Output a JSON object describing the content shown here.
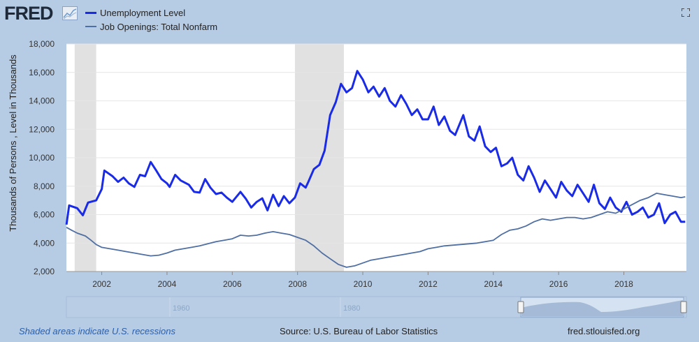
{
  "header": {
    "logo_text": "FRED",
    "legend": [
      {
        "label": "Unemployment Level",
        "color": "#1a2be8"
      },
      {
        "label": "Job Openings: Total Nonfarm",
        "color": "#4f6fa3"
      }
    ]
  },
  "chart_data": {
    "type": "line",
    "ylabel": "Thousands of Persons , Level in Thousands",
    "ylim": [
      2000,
      18000
    ],
    "xlim": [
      2000.917,
      2019.917
    ],
    "ytick_values": [
      2000,
      4000,
      6000,
      8000,
      10000,
      12000,
      14000,
      16000,
      18000
    ],
    "ytick_labels": [
      "2,000",
      "4,000",
      "6,000",
      "8,000",
      "10,000",
      "12,000",
      "14,000",
      "16,000",
      "18,000"
    ],
    "xtick_values": [
      2002,
      2004,
      2006,
      2008,
      2010,
      2012,
      2014,
      2016,
      2018
    ],
    "xtick_labels": [
      "2002",
      "2004",
      "2006",
      "2008",
      "2010",
      "2012",
      "2014",
      "2016",
      "2018"
    ],
    "grid": true,
    "legend_position": "top-left",
    "recessions": [
      [
        2001.17,
        2001.83
      ],
      [
        2007.92,
        2009.42
      ]
    ],
    "series": [
      {
        "name": "Unemployment Level",
        "color": "#1a2be8",
        "points": [
          [
            2000.92,
            5300
          ],
          [
            2001.0,
            6650
          ],
          [
            2001.25,
            6450
          ],
          [
            2001.42,
            5950
          ],
          [
            2001.58,
            6850
          ],
          [
            2001.83,
            7000
          ],
          [
            2002.0,
            7800
          ],
          [
            2002.08,
            9100
          ],
          [
            2002.33,
            8700
          ],
          [
            2002.5,
            8300
          ],
          [
            2002.67,
            8600
          ],
          [
            2002.83,
            8200
          ],
          [
            2003.0,
            7950
          ],
          [
            2003.17,
            8800
          ],
          [
            2003.33,
            8700
          ],
          [
            2003.5,
            9700
          ],
          [
            2003.67,
            9100
          ],
          [
            2003.83,
            8500
          ],
          [
            2004.0,
            8200
          ],
          [
            2004.08,
            7950
          ],
          [
            2004.25,
            8800
          ],
          [
            2004.42,
            8400
          ],
          [
            2004.67,
            8100
          ],
          [
            2004.83,
            7600
          ],
          [
            2005.0,
            7550
          ],
          [
            2005.17,
            8500
          ],
          [
            2005.33,
            7900
          ],
          [
            2005.5,
            7450
          ],
          [
            2005.67,
            7550
          ],
          [
            2005.83,
            7200
          ],
          [
            2006.0,
            6900
          ],
          [
            2006.25,
            7600
          ],
          [
            2006.42,
            7100
          ],
          [
            2006.58,
            6500
          ],
          [
            2006.75,
            6900
          ],
          [
            2006.92,
            7150
          ],
          [
            2007.08,
            6300
          ],
          [
            2007.25,
            7400
          ],
          [
            2007.42,
            6600
          ],
          [
            2007.58,
            7300
          ],
          [
            2007.75,
            6800
          ],
          [
            2007.92,
            7200
          ],
          [
            2008.08,
            8200
          ],
          [
            2008.25,
            7900
          ],
          [
            2008.33,
            8300
          ],
          [
            2008.5,
            9200
          ],
          [
            2008.67,
            9500
          ],
          [
            2008.83,
            10500
          ],
          [
            2009.0,
            13000
          ],
          [
            2009.17,
            13900
          ],
          [
            2009.33,
            15200
          ],
          [
            2009.5,
            14600
          ],
          [
            2009.67,
            14900
          ],
          [
            2009.83,
            16100
          ],
          [
            2010.0,
            15500
          ],
          [
            2010.17,
            14600
          ],
          [
            2010.33,
            15000
          ],
          [
            2010.5,
            14300
          ],
          [
            2010.67,
            14900
          ],
          [
            2010.83,
            14000
          ],
          [
            2011.0,
            13600
          ],
          [
            2011.17,
            14400
          ],
          [
            2011.33,
            13800
          ],
          [
            2011.5,
            13000
          ],
          [
            2011.67,
            13400
          ],
          [
            2011.83,
            12700
          ],
          [
            2012.0,
            12700
          ],
          [
            2012.17,
            13600
          ],
          [
            2012.33,
            12300
          ],
          [
            2012.5,
            12900
          ],
          [
            2012.67,
            11900
          ],
          [
            2012.83,
            11600
          ],
          [
            2013.08,
            13000
          ],
          [
            2013.25,
            11500
          ],
          [
            2013.42,
            11200
          ],
          [
            2013.58,
            12200
          ],
          [
            2013.75,
            10800
          ],
          [
            2013.92,
            10400
          ],
          [
            2014.08,
            10700
          ],
          [
            2014.25,
            9400
          ],
          [
            2014.42,
            9600
          ],
          [
            2014.58,
            10000
          ],
          [
            2014.75,
            8800
          ],
          [
            2014.92,
            8400
          ],
          [
            2015.08,
            9400
          ],
          [
            2015.25,
            8600
          ],
          [
            2015.42,
            7600
          ],
          [
            2015.58,
            8400
          ],
          [
            2015.75,
            7800
          ],
          [
            2015.92,
            7200
          ],
          [
            2016.08,
            8300
          ],
          [
            2016.25,
            7700
          ],
          [
            2016.42,
            7300
          ],
          [
            2016.58,
            8100
          ],
          [
            2016.75,
            7500
          ],
          [
            2016.92,
            6900
          ],
          [
            2017.08,
            8100
          ],
          [
            2017.25,
            6800
          ],
          [
            2017.42,
            6400
          ],
          [
            2017.58,
            7200
          ],
          [
            2017.75,
            6500
          ],
          [
            2017.92,
            6200
          ],
          [
            2018.08,
            6900
          ],
          [
            2018.25,
            6000
          ],
          [
            2018.42,
            6200
          ],
          [
            2018.58,
            6500
          ],
          [
            2018.75,
            5800
          ],
          [
            2018.92,
            6000
          ],
          [
            2019.08,
            6800
          ],
          [
            2019.25,
            5400
          ],
          [
            2019.42,
            6000
          ],
          [
            2019.58,
            6200
          ],
          [
            2019.75,
            5500
          ],
          [
            2019.88,
            5500
          ]
        ]
      },
      {
        "name": "Job Openings: Total Nonfarm",
        "color": "#4f6fa3",
        "points": [
          [
            2000.92,
            5100
          ],
          [
            2001.08,
            4900
          ],
          [
            2001.25,
            4700
          ],
          [
            2001.5,
            4500
          ],
          [
            2001.67,
            4200
          ],
          [
            2001.83,
            3900
          ],
          [
            2002.0,
            3700
          ],
          [
            2002.25,
            3600
          ],
          [
            2002.5,
            3500
          ],
          [
            2002.75,
            3400
          ],
          [
            2003.0,
            3300
          ],
          [
            2003.25,
            3200
          ],
          [
            2003.5,
            3100
          ],
          [
            2003.75,
            3150
          ],
          [
            2004.0,
            3300
          ],
          [
            2004.25,
            3500
          ],
          [
            2004.5,
            3600
          ],
          [
            2004.75,
            3700
          ],
          [
            2005.0,
            3800
          ],
          [
            2005.25,
            3950
          ],
          [
            2005.5,
            4100
          ],
          [
            2005.75,
            4200
          ],
          [
            2006.0,
            4300
          ],
          [
            2006.25,
            4550
          ],
          [
            2006.5,
            4500
          ],
          [
            2006.75,
            4550
          ],
          [
            2007.0,
            4700
          ],
          [
            2007.25,
            4800
          ],
          [
            2007.5,
            4700
          ],
          [
            2007.75,
            4600
          ],
          [
            2008.0,
            4400
          ],
          [
            2008.25,
            4200
          ],
          [
            2008.5,
            3800
          ],
          [
            2008.75,
            3300
          ],
          [
            2009.0,
            2900
          ],
          [
            2009.25,
            2500
          ],
          [
            2009.5,
            2300
          ],
          [
            2009.75,
            2400
          ],
          [
            2010.0,
            2600
          ],
          [
            2010.25,
            2800
          ],
          [
            2010.5,
            2900
          ],
          [
            2010.75,
            3000
          ],
          [
            2011.0,
            3100
          ],
          [
            2011.25,
            3200
          ],
          [
            2011.5,
            3300
          ],
          [
            2011.75,
            3400
          ],
          [
            2012.0,
            3600
          ],
          [
            2012.25,
            3700
          ],
          [
            2012.5,
            3800
          ],
          [
            2012.75,
            3850
          ],
          [
            2013.0,
            3900
          ],
          [
            2013.25,
            3950
          ],
          [
            2013.5,
            4000
          ],
          [
            2013.75,
            4100
          ],
          [
            2014.0,
            4200
          ],
          [
            2014.25,
            4600
          ],
          [
            2014.5,
            4900
          ],
          [
            2014.75,
            5000
          ],
          [
            2015.0,
            5200
          ],
          [
            2015.25,
            5500
          ],
          [
            2015.5,
            5700
          ],
          [
            2015.75,
            5600
          ],
          [
            2016.0,
            5700
          ],
          [
            2016.25,
            5800
          ],
          [
            2016.5,
            5800
          ],
          [
            2016.75,
            5700
          ],
          [
            2017.0,
            5800
          ],
          [
            2017.25,
            6000
          ],
          [
            2017.5,
            6200
          ],
          [
            2017.75,
            6100
          ],
          [
            2018.0,
            6400
          ],
          [
            2018.25,
            6700
          ],
          [
            2018.5,
            7000
          ],
          [
            2018.75,
            7200
          ],
          [
            2019.0,
            7500
          ],
          [
            2019.25,
            7400
          ],
          [
            2019.5,
            7300
          ],
          [
            2019.75,
            7200
          ],
          [
            2019.88,
            7250
          ]
        ]
      }
    ]
  },
  "navigator": {
    "labels": [
      "1960",
      "1980"
    ]
  },
  "footer": {
    "recession_note": "Shaded areas indicate U.S. recessions",
    "source": "Source: U.S. Bureau of Labor Statistics",
    "site": "fred.stlouisfed.org"
  }
}
